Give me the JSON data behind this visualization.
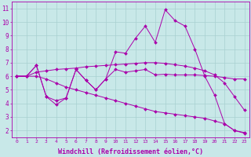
{
  "background_color": "#c8e8e8",
  "grid_color": "#a8d0d0",
  "line_color": "#aa00aa",
  "marker": "D",
  "marker_size": 2,
  "xlabel": "Windchill (Refroidissement éolien,°C)",
  "xlabel_fontsize": 6,
  "xtick_fontsize": 4.5,
  "ytick_fontsize": 5.5,
  "xlim": [
    -0.5,
    23.5
  ],
  "ylim": [
    1.5,
    11.5
  ],
  "xticks": [
    0,
    1,
    2,
    3,
    4,
    5,
    6,
    7,
    8,
    9,
    10,
    11,
    12,
    13,
    14,
    15,
    16,
    17,
    18,
    19,
    20,
    21,
    22,
    23
  ],
  "yticks": [
    2,
    3,
    4,
    5,
    6,
    7,
    8,
    9,
    10,
    11
  ],
  "line1_x": [
    0,
    1,
    2,
    3,
    4,
    5,
    6,
    7,
    8,
    9,
    10,
    11,
    12,
    13,
    14,
    15,
    16,
    17,
    18,
    19,
    20,
    21,
    22,
    23
  ],
  "line1_y": [
    6.0,
    6.0,
    6.8,
    4.5,
    3.9,
    4.4,
    6.5,
    5.7,
    5.0,
    5.8,
    6.5,
    6.3,
    6.4,
    6.5,
    6.1,
    6.15,
    6.1,
    6.1,
    6.1,
    6.05,
    6.0,
    5.9,
    5.8,
    5.8
  ],
  "line2_x": [
    0,
    1,
    2,
    3,
    4,
    5,
    6,
    7,
    8,
    9,
    10,
    11,
    12,
    13,
    14,
    15,
    16,
    17,
    18,
    19,
    20,
    21,
    22,
    23
  ],
  "line2_y": [
    6.0,
    6.0,
    6.8,
    4.5,
    4.2,
    4.4,
    6.5,
    5.7,
    5.0,
    5.8,
    7.8,
    7.7,
    8.8,
    9.7,
    8.5,
    10.9,
    10.1,
    9.7,
    8.0,
    6.0,
    4.6,
    2.5,
    2.0,
    1.85
  ],
  "line3_x": [
    0,
    1,
    2,
    3,
    4,
    5,
    6,
    7,
    8,
    9,
    10,
    11,
    12,
    13,
    14,
    15,
    16,
    17,
    18,
    19,
    20,
    21,
    22,
    23
  ],
  "line3_y": [
    6.0,
    6.0,
    6.3,
    6.4,
    6.5,
    6.55,
    6.6,
    6.7,
    6.75,
    6.8,
    6.85,
    6.9,
    6.95,
    7.0,
    7.0,
    6.95,
    6.85,
    6.75,
    6.6,
    6.4,
    6.1,
    5.5,
    4.5,
    3.5
  ],
  "line4_x": [
    0,
    1,
    2,
    3,
    4,
    5,
    6,
    7,
    8,
    9,
    10,
    11,
    12,
    13,
    14,
    15,
    16,
    17,
    18,
    19,
    20,
    21,
    22,
    23
  ],
  "line4_y": [
    6.0,
    6.0,
    6.0,
    5.8,
    5.5,
    5.2,
    5.0,
    4.8,
    4.6,
    4.4,
    4.2,
    4.0,
    3.8,
    3.6,
    3.4,
    3.3,
    3.2,
    3.1,
    3.0,
    2.9,
    2.7,
    2.5,
    2.0,
    1.8
  ]
}
